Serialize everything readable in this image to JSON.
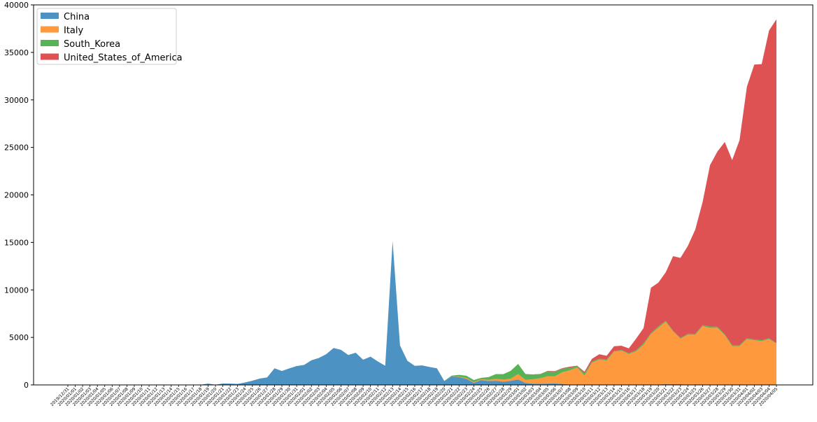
{
  "chart_data": {
    "type": "area",
    "stacked": true,
    "ylim": [
      0,
      40000
    ],
    "yticks": [
      0,
      5000,
      10000,
      15000,
      20000,
      25000,
      30000,
      35000,
      40000
    ],
    "legend_position": "top-left",
    "grid": false,
    "x": [
      "2019/12/31",
      "2020/01/01",
      "2020/01/02",
      "2020/01/03",
      "2020/01/04",
      "2020/01/05",
      "2020/01/06",
      "2020/01/07",
      "2020/01/08",
      "2020/01/09",
      "2020/01/10",
      "2020/01/11",
      "2020/01/12",
      "2020/01/13",
      "2020/01/14",
      "2020/01/15",
      "2020/01/16",
      "2020/01/17",
      "2020/01/18",
      "2020/01/19",
      "2020/01/20",
      "2020/01/21",
      "2020/01/22",
      "2020/01/23",
      "2020/01/24",
      "2020/01/25",
      "2020/01/26",
      "2020/01/27",
      "2020/01/28",
      "2020/01/29",
      "2020/01/30",
      "2020/01/31",
      "2020/02/01",
      "2020/02/02",
      "2020/02/03",
      "2020/02/04",
      "2020/02/05",
      "2020/02/06",
      "2020/02/07",
      "2020/02/08",
      "2020/02/09",
      "2020/02/10",
      "2020/02/11",
      "2020/02/12",
      "2020/02/13",
      "2020/02/14",
      "2020/02/15",
      "2020/02/16",
      "2020/02/17",
      "2020/02/18",
      "2020/02/19",
      "2020/02/20",
      "2020/02/21",
      "2020/02/22",
      "2020/02/23",
      "2020/02/24",
      "2020/02/25",
      "2020/02/26",
      "2020/02/27",
      "2020/02/28",
      "2020/02/29",
      "2020/03/01",
      "2020/03/02",
      "2020/03/03",
      "2020/03/04",
      "2020/03/05",
      "2020/03/06",
      "2020/03/07",
      "2020/03/08",
      "2020/03/09",
      "2020/03/10",
      "2020/03/11",
      "2020/03/12",
      "2020/03/13",
      "2020/03/14",
      "2020/03/15",
      "2020/03/16",
      "2020/03/17",
      "2020/03/18",
      "2020/03/19",
      "2020/03/20",
      "2020/03/21",
      "2020/03/22",
      "2020/03/23",
      "2020/03/24",
      "2020/03/25",
      "2020/03/26",
      "2020/03/27",
      "2020/03/28",
      "2020/03/29",
      "2020/03/30",
      "2020/03/31",
      "2020/04/01",
      "2020/04/02",
      "2020/04/03",
      "2020/04/04",
      "2020/04/05"
    ],
    "series": [
      {
        "name": "China",
        "color": "#1f77b4",
        "values": [
          27,
          0,
          0,
          17,
          0,
          15,
          0,
          0,
          0,
          0,
          0,
          0,
          0,
          0,
          0,
          0,
          0,
          4,
          17,
          136,
          19,
          151,
          140,
          97,
          259,
          441,
          665,
          787,
          1753,
          1466,
          1740,
          1980,
          2102,
          2590,
          2829,
          3235,
          3887,
          3694,
          3143,
          3385,
          2652,
          2973,
          2467,
          2015,
          15141,
          4156,
          2538,
          2007,
          2052,
          1890,
          1750,
          394,
          889,
          823,
          648,
          214,
          508,
          406,
          433,
          327,
          427,
          573,
          202,
          125,
          119,
          139,
          143,
          99,
          44,
          40,
          19,
          24,
          15,
          20,
          11,
          20,
          16,
          29,
          39,
          41,
          46,
          99,
          74,
          78,
          47,
          67,
          55,
          54,
          45,
          31,
          37,
          31,
          48,
          36,
          30,
          30,
          38
        ]
      },
      {
        "name": "Italy",
        "color": "#ff7f0e",
        "values": [
          0,
          0,
          0,
          0,
          0,
          0,
          0,
          0,
          0,
          0,
          0,
          0,
          0,
          0,
          0,
          0,
          0,
          0,
          0,
          0,
          0,
          0,
          0,
          0,
          0,
          0,
          0,
          0,
          0,
          0,
          0,
          2,
          0,
          0,
          0,
          0,
          0,
          0,
          0,
          0,
          0,
          0,
          0,
          0,
          0,
          0,
          0,
          0,
          0,
          0,
          0,
          0,
          17,
          42,
          93,
          74,
          93,
          131,
          202,
          233,
          240,
          566,
          342,
          466,
          587,
          769,
          778,
          1247,
          1492,
          1797,
          977,
          2313,
          2651,
          2547,
          3497,
          3590,
          3233,
          3526,
          4207,
          5322,
          5986,
          6557,
          5560,
          4789,
          5249,
          5210,
          6153,
          5959,
          5974,
          5217,
          4050,
          4053,
          4782,
          4668,
          4585,
          4805,
          4316
        ]
      },
      {
        "name": "South_Korea",
        "color": "#2ca02c",
        "values": [
          0,
          0,
          0,
          0,
          0,
          0,
          0,
          0,
          0,
          0,
          0,
          0,
          0,
          0,
          0,
          0,
          0,
          0,
          0,
          0,
          1,
          0,
          0,
          0,
          1,
          0,
          1,
          1,
          0,
          0,
          0,
          5,
          1,
          3,
          0,
          1,
          2,
          0,
          6,
          6,
          3,
          3,
          1,
          0,
          0,
          0,
          0,
          0,
          1,
          0,
          1,
          31,
          68,
          190,
          229,
          231,
          144,
          284,
          505,
          571,
          813,
          1062,
          600,
          516,
          438,
          518,
          483,
          367,
          248,
          131,
          242,
          114,
          110,
          107,
          76,
          74,
          84,
          93,
          152,
          87,
          147,
          98,
          64,
          76,
          100,
          104,
          91,
          146,
          105,
          78,
          125,
          101,
          89,
          86,
          94,
          81,
          47
        ]
      },
      {
        "name": "United_States_of_America",
        "color": "#d62728",
        "values": [
          0,
          0,
          0,
          0,
          0,
          0,
          0,
          0,
          0,
          0,
          0,
          0,
          0,
          0,
          0,
          0,
          0,
          0,
          0,
          0,
          0,
          1,
          0,
          0,
          1,
          0,
          3,
          0,
          0,
          0,
          0,
          1,
          1,
          0,
          3,
          0,
          0,
          1,
          0,
          0,
          0,
          0,
          0,
          1,
          0,
          0,
          1,
          0,
          0,
          0,
          0,
          0,
          0,
          0,
          0,
          0,
          0,
          0,
          0,
          0,
          1,
          7,
          3,
          0,
          5,
          43,
          53,
          58,
          128,
          58,
          149,
          291,
          452,
          393,
          483,
          442,
          515,
          1234,
          1583,
          4777,
          4588,
          5094,
          7853,
          8424,
          9237,
          10964,
          12956,
          16974,
          18431,
          20245,
          19452,
          21570,
          26471,
          28927,
          29057,
          32384,
          34091
        ]
      }
    ]
  }
}
